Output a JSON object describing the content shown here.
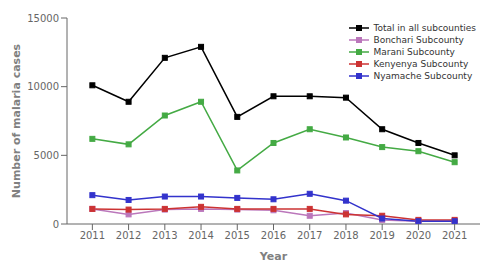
{
  "chart_data": {
    "type": "line",
    "xlabel": "Year",
    "ylabel": "Number of malaria cases",
    "x": [
      2011,
      2012,
      2013,
      2014,
      2015,
      2016,
      2017,
      2018,
      2019,
      2020,
      2021
    ],
    "series": [
      {
        "name": "Total in all subcounties",
        "color": "#000000",
        "marker": "square",
        "values": [
          10100,
          8900,
          12100,
          12900,
          7800,
          9300,
          9300,
          9200,
          6900,
          5900,
          5000
        ]
      },
      {
        "name": "Bonchari Subcounty",
        "color": "#bb77bb",
        "marker": "square",
        "values": [
          1100,
          700,
          1050,
          1100,
          1050,
          1000,
          600,
          800,
          300,
          200,
          200
        ]
      },
      {
        "name": "Marani Subcounty",
        "color": "#44aa44",
        "marker": "square",
        "values": [
          6200,
          5800,
          7900,
          8900,
          3900,
          5900,
          6900,
          6300,
          5600,
          5300,
          4500
        ]
      },
      {
        "name": "Kenyenya Subcounty",
        "color": "#cc3333",
        "marker": "square",
        "values": [
          1100,
          1050,
          1100,
          1250,
          1100,
          1100,
          1100,
          700,
          600,
          300,
          300
        ]
      },
      {
        "name": "Nyamache Subcounty",
        "color": "#3333cc",
        "marker": "square",
        "values": [
          2100,
          1750,
          2000,
          2000,
          1900,
          1800,
          2200,
          1700,
          400,
          200,
          200
        ]
      }
    ],
    "xlim": [
      2010.3,
      2021.7
    ],
    "xticks": [
      2011,
      2012,
      2013,
      2014,
      2015,
      2016,
      2017,
      2018,
      2019,
      2020,
      2021
    ],
    "ylim": [
      0,
      15000
    ],
    "yticks": [
      0,
      5000,
      10000,
      15000
    ],
    "grid": false,
    "legend": "upper right"
  }
}
